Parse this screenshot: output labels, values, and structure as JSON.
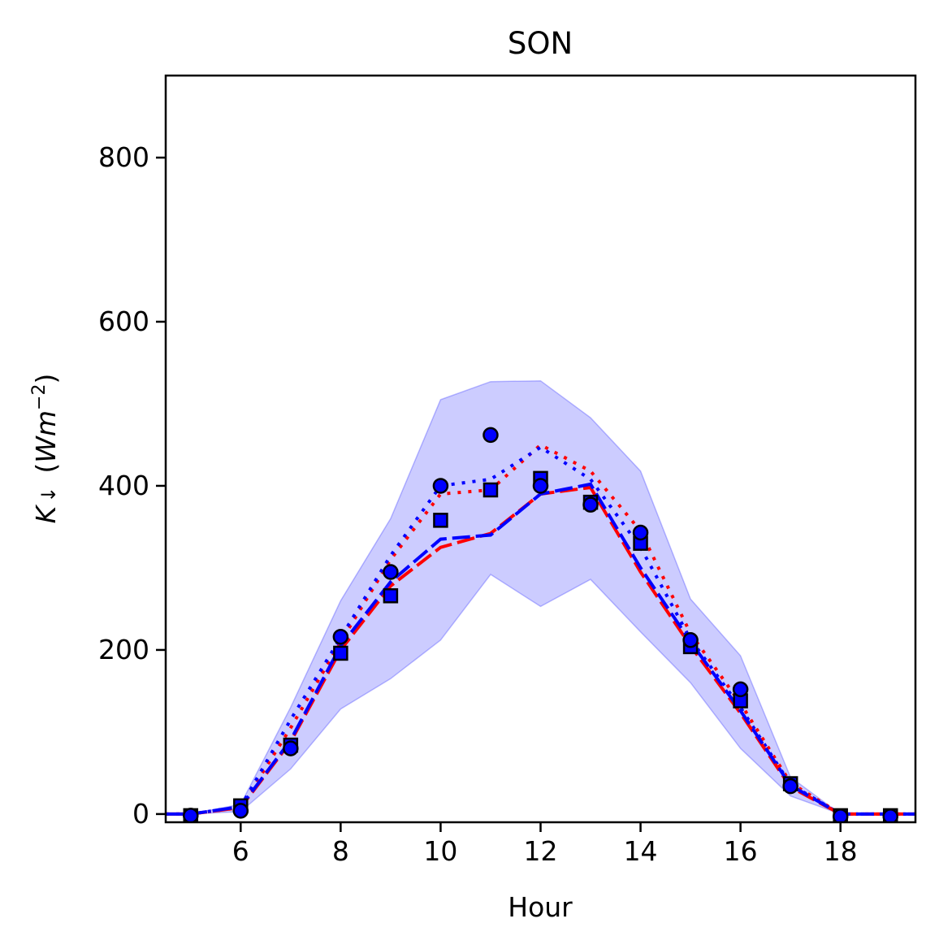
{
  "chart_data": {
    "type": "line",
    "title": "SON",
    "xlabel": "Hour",
    "ylabel": "K↓ (Wm⁻²)",
    "xlim": [
      4.5,
      19.5
    ],
    "ylim": [
      -10,
      900
    ],
    "xticks": [
      6,
      8,
      10,
      12,
      14,
      16,
      18
    ],
    "yticks": [
      0,
      200,
      400,
      600,
      800
    ],
    "grid": false,
    "band": {
      "color": "#0000ff",
      "x": [
        4.5,
        5,
        6,
        7,
        8,
        9,
        10,
        11,
        12,
        13,
        14,
        15,
        16,
        17,
        18,
        19,
        19.5
      ],
      "upper": [
        0,
        0,
        12,
        130,
        260,
        360,
        505,
        527,
        528,
        483,
        418,
        262,
        193,
        45,
        0,
        0,
        0
      ],
      "lower": [
        0,
        0,
        3,
        55,
        128,
        165,
        212,
        292,
        253,
        286,
        222,
        160,
        80,
        22,
        0,
        0,
        0
      ]
    },
    "series": [
      {
        "color": "#ff0000",
        "style": "dotted",
        "x": [
          4.5,
          5,
          6,
          7,
          8,
          9,
          10,
          11,
          12,
          13,
          14,
          15,
          16,
          17,
          18,
          19,
          19.5
        ],
        "values": [
          0,
          0,
          8,
          105,
          210,
          310,
          390,
          395,
          450,
          418,
          345,
          220,
          135,
          38,
          0,
          0,
          0
        ]
      },
      {
        "color": "#0000ff",
        "style": "dotted",
        "x": [
          4.5,
          5,
          6,
          7,
          8,
          9,
          10,
          11,
          12,
          13,
          14,
          15,
          16,
          17,
          18,
          19,
          19.5
        ],
        "values": [
          0,
          0,
          9,
          115,
          215,
          315,
          400,
          408,
          447,
          408,
          325,
          213,
          130,
          36,
          0,
          0,
          0
        ]
      },
      {
        "color": "#ff0000",
        "style": "dashed",
        "x": [
          4.5,
          5,
          6,
          7,
          8,
          9,
          10,
          11,
          12,
          13,
          14,
          15,
          16,
          17,
          18,
          19,
          19.5
        ],
        "values": [
          0,
          0,
          8,
          88,
          200,
          278,
          325,
          342,
          390,
          398,
          295,
          205,
          123,
          33,
          0,
          0,
          0
        ]
      },
      {
        "color": "#0000ff",
        "style": "dashed",
        "x": [
          4.5,
          5,
          6,
          7,
          8,
          9,
          10,
          11,
          12,
          13,
          14,
          15,
          16,
          17,
          18,
          19,
          19.5
        ],
        "values": [
          0,
          0,
          9,
          90,
          205,
          283,
          335,
          340,
          390,
          402,
          300,
          210,
          126,
          35,
          0,
          0,
          0
        ]
      }
    ],
    "markers": [
      {
        "shape": "square",
        "color": "#0000ff",
        "x": [
          5,
          6,
          7,
          8,
          9,
          10,
          11,
          12,
          13,
          14,
          15,
          16,
          17,
          18,
          19
        ],
        "values": [
          -2,
          10,
          84,
          196,
          266,
          358,
          395,
          409,
          380,
          330,
          204,
          138,
          37,
          -2,
          -2
        ]
      },
      {
        "shape": "circle",
        "color": "#0000ff",
        "x": [
          5,
          6,
          7,
          8,
          9,
          10,
          11,
          12,
          13,
          14,
          15,
          16,
          17,
          18,
          19
        ],
        "values": [
          -2,
          4,
          80,
          216,
          295,
          400,
          462,
          400,
          377,
          343,
          212,
          152,
          34,
          -3,
          -3
        ]
      }
    ]
  }
}
